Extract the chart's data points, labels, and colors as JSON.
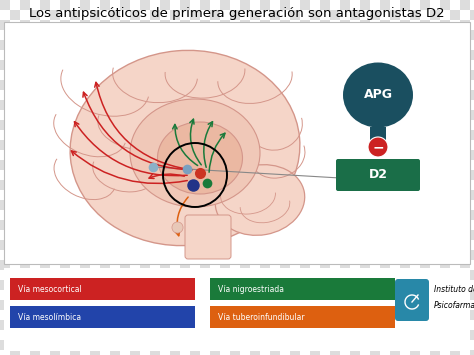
{
  "title": "Los antipsicóticos de primera generación son antagonistas D2",
  "title_fontsize": 9.5,
  "brain_fill": "#f5d5c8",
  "brain_edge": "#d4968a",
  "legend_items": [
    {
      "label": "Vía mesocortical",
      "color": "#cc2222"
    },
    {
      "label": "Vía mesolímbica",
      "color": "#2244aa"
    },
    {
      "label": "Vía nigroestriada",
      "color": "#1a7a3a"
    },
    {
      "label": "Vía tuberoinfundibular",
      "color": "#dd6010"
    }
  ],
  "apg_color": "#1a4f60",
  "d2_color": "#1a6e48",
  "minus_color": "#cc2222",
  "red_arrow_color": "#cc2222",
  "green_arrow_color": "#1a7a3a",
  "orange_arrow_color": "#dd6010",
  "blue_line_color": "#666666",
  "dot_colors": [
    "#7aa0c0",
    "#cc3322",
    "#223388",
    "#1a7a3a"
  ],
  "institute_text_1": "Instituto de",
  "institute_text_2": "Psicofarmacología",
  "checker_light": "#dddddd",
  "checker_dark": "#ffffff"
}
